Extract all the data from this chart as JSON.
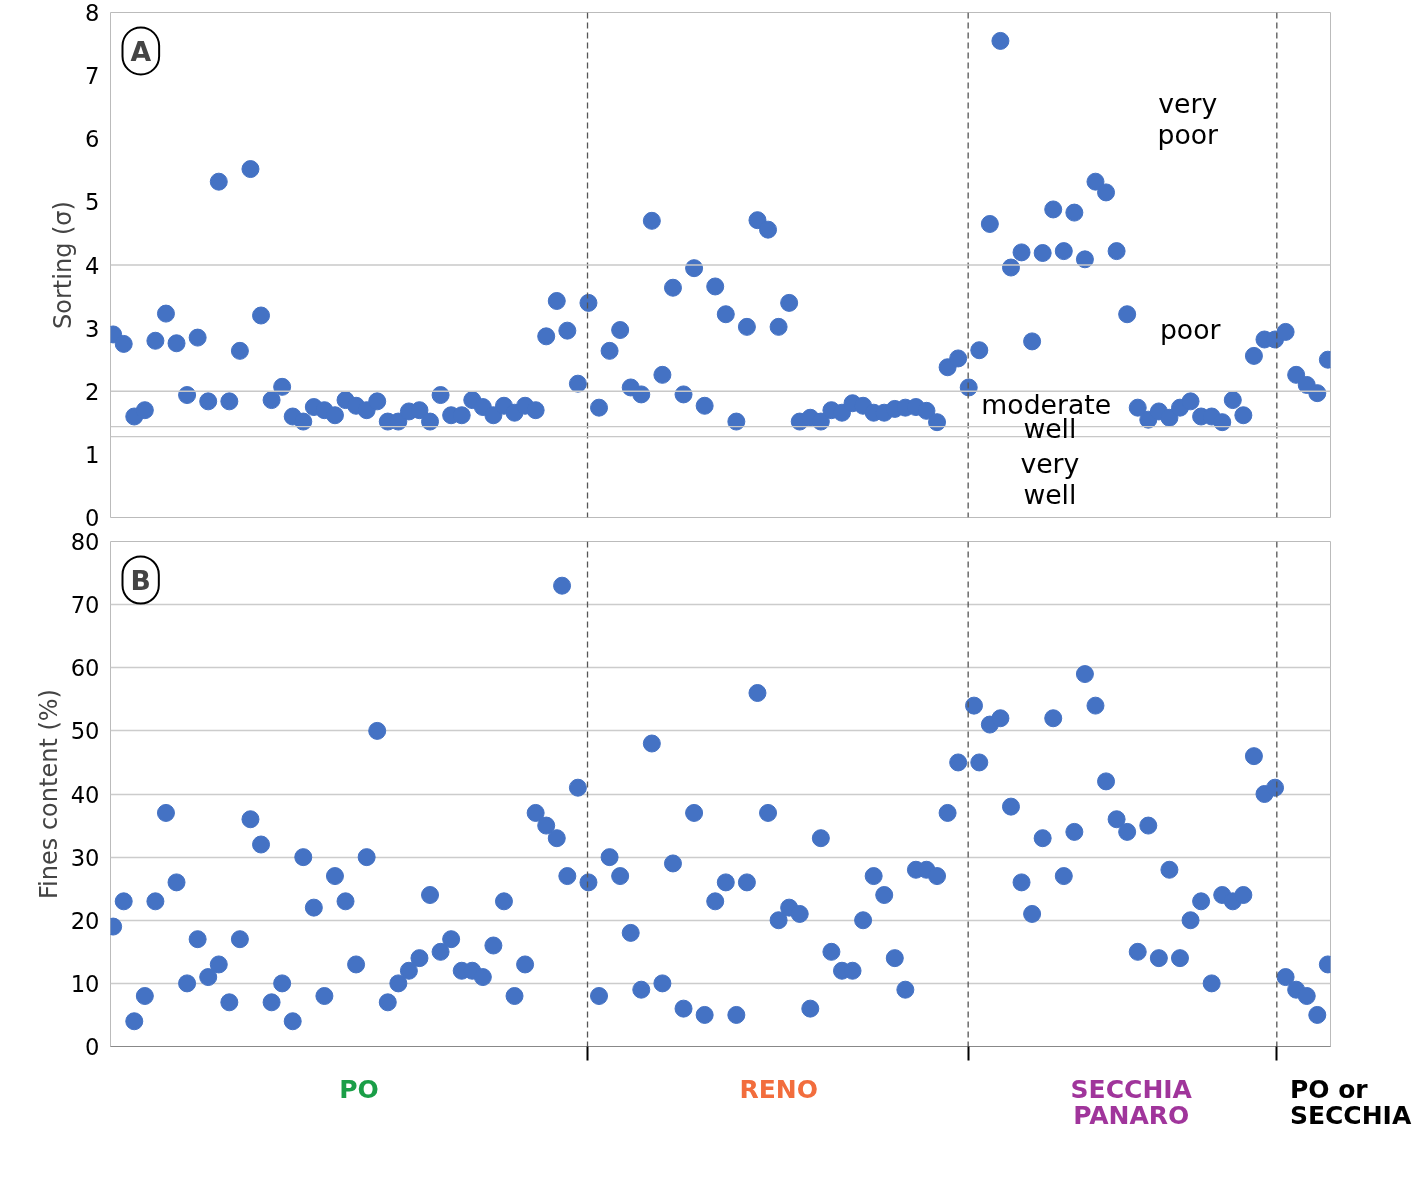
{
  "chart_data": [
    {
      "type": "scatter",
      "ylabel": "Sorting (σ)",
      "ylim": [
        0,
        8
      ],
      "yticks": [
        0,
        1,
        2,
        3,
        4,
        5,
        6,
        7,
        8
      ],
      "tick_labels": "y",
      "grid": false,
      "marker": "circle",
      "color": "#4472c4",
      "categories": [
        null,
        null,
        null,
        null,
        null,
        null,
        null,
        null,
        null,
        null,
        null,
        null,
        null,
        null,
        null,
        null,
        null,
        null,
        null,
        null,
        null,
        null,
        null,
        null,
        null,
        null,
        null,
        null,
        null,
        null,
        null,
        null,
        null,
        null,
        null,
        null,
        null,
        null,
        null,
        null,
        null,
        null,
        null,
        null,
        null,
        null,
        null,
        null,
        null,
        null,
        null,
        null,
        null,
        null,
        null,
        null,
        null,
        null,
        null,
        null,
        null,
        null,
        null,
        null,
        null,
        null,
        null,
        null,
        null,
        null,
        null,
        null,
        null,
        null,
        null,
        null,
        null,
        null,
        null,
        null,
        null,
        null,
        null,
        null,
        null,
        null,
        null,
        null,
        null,
        null,
        null,
        null,
        null,
        null,
        null,
        null,
        null,
        null,
        null,
        null,
        null,
        null,
        null,
        null,
        null,
        null,
        null,
        null,
        null,
        null,
        null,
        null,
        null,
        null,
        null,
        null,
        null,
        null,
        null,
        null,
        null,
        null,
        null,
        null,
        null,
        null,
        null,
        null,
        null,
        null,
        null,
        null,
        null,
        null,
        null,
        null,
        null,
        null,
        null,
        null,
        null,
        null,
        null,
        null,
        null,
        null,
        null,
        null,
        null,
        null,
        null,
        null,
        null,
        null,
        null,
        null,
        null,
        null,
        null,
        null,
        null,
        null,
        null,
        null,
        null,
        null,
        null,
        null,
        null,
        null,
        null,
        null,
        null,
        null,
        null,
        null,
        null,
        null,
        null,
        null,
        null,
        null,
        null,
        null,
        null,
        null,
        null,
        null,
        null,
        null,
        null,
        null,
        null,
        null,
        null,
        null,
        null,
        null,
        null,
        null,
        null,
        null,
        null,
        null,
        null,
        null,
        null,
        null,
        null,
        null,
        null,
        null,
        null,
        null,
        null,
        null,
        null,
        null,
        null,
        null,
        null,
        null,
        null,
        null,
        null,
        null,
        null,
        null,
        null,
        null,
        null
      ],
      "values": [
        2.9,
        null,
        2.75,
        null,
        1.6,
        null,
        1.7,
        null,
        2.8,
        null,
        3.23,
        null,
        2.76,
        null,
        1.94,
        null,
        2.85,
        null,
        1.84,
        null,
        5.32,
        null,
        1.84,
        null,
        2.64,
        null,
        5.52,
        null,
        3.2,
        null,
        1.86,
        null,
        2.07,
        null,
        1.6,
        null,
        1.52,
        null,
        1.75,
        null,
        1.7,
        null,
        1.62,
        null,
        1.86,
        null,
        1.77,
        null,
        1.7,
        null,
        1.84,
        null,
        1.52,
        null,
        1.52,
        null,
        1.68,
        null,
        1.7,
        null,
        1.52,
        null,
        1.94,
        null,
        1.62,
        null,
        1.62,
        null,
        1.86,
        null,
        1.75,
        null,
        1.62,
        null,
        1.77,
        null,
        1.66,
        null,
        1.77,
        null,
        1.7,
        null,
        2.87,
        null,
        3.43,
        null,
        2.96,
        null,
        2.12,
        null,
        3.4,
        null,
        1.74,
        null,
        2.64,
        null,
        2.97,
        null,
        2.06,
        null,
        1.95,
        null,
        4.7,
        null,
        2.26,
        null,
        3.64,
        null,
        1.95,
        null,
        3.95,
        null,
        1.77,
        null,
        3.66,
        null,
        3.22,
        null,
        1.52,
        null,
        3.02,
        null,
        4.71,
        null,
        4.56,
        null,
        3.02,
        null,
        3.4,
        null,
        1.52,
        null,
        1.58,
        null,
        1.52,
        null,
        1.7,
        null,
        1.66,
        null,
        1.81,
        null,
        1.77,
        null,
        1.66,
        null,
        1.66,
        null,
        1.72,
        null,
        1.74,
        null,
        1.75,
        null,
        1.69,
        null,
        1.51,
        null,
        2.38,
        null,
        2.52,
        null,
        2.06,
        null,
        2.65,
        null,
        4.65,
        null,
        7.55,
        null,
        3.96,
        null,
        4.2,
        null,
        2.79,
        null,
        4.19,
        null,
        4.88,
        null,
        4.22,
        null,
        4.83,
        null,
        4.09,
        null,
        5.32,
        null,
        5.15,
        null,
        4.22,
        null,
        3.22,
        null,
        1.74,
        null,
        1.55,
        null,
        1.68,
        null,
        1.58,
        null,
        1.74,
        null,
        1.84,
        null,
        1.6,
        null,
        1.6,
        null,
        1.51,
        null,
        1.86,
        null,
        1.62,
        null,
        2.56,
        null,
        2.82,
        null,
        2.82,
        null,
        2.94,
        null,
        2.26,
        null,
        2.1,
        null,
        1.97,
        null,
        2.5
      ],
      "ref_lines": [
        {
          "axis": "y",
          "value": 4,
          "color": "#c8c8c8",
          "line_style": "solid"
        },
        {
          "axis": "y",
          "value": 2,
          "color": "#c8c8c8",
          "line_style": "solid"
        },
        {
          "axis": "y",
          "value": 1.44,
          "color": "#c8c8c8",
          "line_style": "solid"
        },
        {
          "axis": "y",
          "value": 1.28,
          "color": "#c8c8c8",
          "line_style": "solid"
        }
      ],
      "annotations": [
        "A",
        "very\npoor",
        "poor",
        "moderate",
        "well",
        "very\nwell"
      ]
    },
    {
      "type": "scatter",
      "ylabel": "Fines content (%)",
      "ylim": [
        0,
        80
      ],
      "yticks": [
        0,
        10,
        20,
        30,
        40,
        50,
        60,
        70,
        80
      ],
      "tick_labels": "y",
      "grid": "y",
      "marker": "circle",
      "color": "#4472c4",
      "categories": [
        null,
        null,
        null,
        null,
        null,
        null,
        null,
        null,
        null,
        null,
        null,
        null,
        null,
        null,
        null,
        null,
        null,
        null,
        null,
        null,
        null,
        null,
        null,
        null,
        null,
        null,
        null,
        null,
        null,
        null,
        null,
        null,
        null,
        null,
        null,
        null,
        null,
        null,
        null,
        null,
        null,
        null,
        null,
        null,
        null,
        null,
        null,
        null,
        null,
        null,
        null,
        null,
        null,
        null,
        null,
        null,
        null,
        null,
        null,
        null,
        null,
        null,
        null,
        null,
        null,
        null,
        null,
        null,
        null,
        null,
        null,
        null,
        null,
        null,
        null,
        null,
        null,
        null,
        null,
        null,
        null,
        null,
        null,
        null,
        null,
        null,
        null,
        null,
        null,
        null,
        null,
        null,
        null,
        null,
        null,
        null,
        null,
        null,
        null,
        null,
        null,
        null,
        null,
        null,
        null,
        null,
        null,
        null,
        null,
        null,
        null,
        null,
        null,
        null,
        null,
        null,
        null,
        null,
        null,
        null,
        null,
        null,
        null,
        null,
        null,
        null,
        null,
        null,
        null,
        null,
        null,
        null,
        null,
        null,
        null,
        null,
        null,
        null,
        null,
        null,
        null,
        null,
        null,
        null,
        null,
        null,
        null,
        null,
        null,
        null,
        null,
        null,
        null,
        null,
        null,
        null,
        null,
        null,
        null,
        null,
        null,
        null,
        null,
        null,
        null,
        null,
        null,
        null,
        null,
        null,
        null,
        null,
        null,
        null,
        null,
        null,
        null,
        null,
        null,
        null,
        null,
        null,
        null,
        null,
        null,
        null,
        null,
        null,
        null,
        null,
        null,
        null,
        null,
        null,
        null,
        null,
        null,
        null,
        null,
        null,
        null,
        null,
        null,
        null,
        null,
        null,
        null,
        null,
        null,
        null,
        null,
        null,
        null,
        null,
        null,
        null,
        null,
        null,
        null,
        null,
        null,
        null,
        null,
        null,
        null,
        null,
        null,
        null,
        null,
        null,
        null
      ],
      "values": [
        19,
        null,
        23,
        null,
        4,
        null,
        8,
        null,
        23,
        null,
        37,
        null,
        26,
        null,
        10,
        null,
        17,
        null,
        11,
        null,
        13,
        null,
        7,
        null,
        17,
        null,
        36,
        null,
        32,
        null,
        7,
        null,
        10,
        null,
        4,
        null,
        30,
        null,
        22,
        null,
        8,
        null,
        27,
        null,
        23,
        null,
        13,
        null,
        30,
        null,
        50,
        null,
        7,
        null,
        10,
        null,
        12,
        null,
        14,
        null,
        24,
        null,
        15,
        null,
        17,
        null,
        12,
        null,
        12,
        null,
        11,
        null,
        16,
        null,
        23,
        null,
        8,
        null,
        13,
        null,
        37,
        null,
        35,
        null,
        33,
        73,
        27,
        null,
        41,
        null,
        26,
        null,
        8,
        null,
        30,
        null,
        27,
        null,
        18,
        null,
        9,
        null,
        48,
        null,
        10,
        null,
        29,
        null,
        6,
        null,
        37,
        null,
        5,
        null,
        23,
        null,
        26,
        null,
        5,
        null,
        26,
        null,
        56,
        null,
        37,
        null,
        20,
        null,
        22,
        null,
        21,
        null,
        6,
        null,
        33,
        null,
        15,
        null,
        12,
        null,
        12,
        null,
        20,
        null,
        27,
        null,
        24,
        null,
        14,
        null,
        9,
        null,
        28,
        null,
        28,
        null,
        27,
        null,
        37,
        null,
        45,
        null,
        null,
        54,
        45,
        null,
        51,
        null,
        52,
        null,
        38,
        null,
        26,
        null,
        21,
        null,
        33,
        null,
        52,
        null,
        27,
        null,
        34,
        null,
        59,
        null,
        54,
        null,
        42,
        null,
        36,
        null,
        34,
        null,
        15,
        null,
        35,
        null,
        14,
        null,
        28,
        null,
        14,
        null,
        20,
        null,
        23,
        null,
        10,
        null,
        24,
        null,
        23,
        null,
        24,
        null,
        46,
        null,
        40,
        null,
        41,
        null,
        11,
        null,
        9,
        null,
        8,
        null,
        5,
        null,
        13
      ],
      "annotations": [
        "B",
        "PO",
        "RENO",
        "SECCHIA\nPANARO",
        "PO or\nSECCHIA"
      ]
    }
  ]
}
